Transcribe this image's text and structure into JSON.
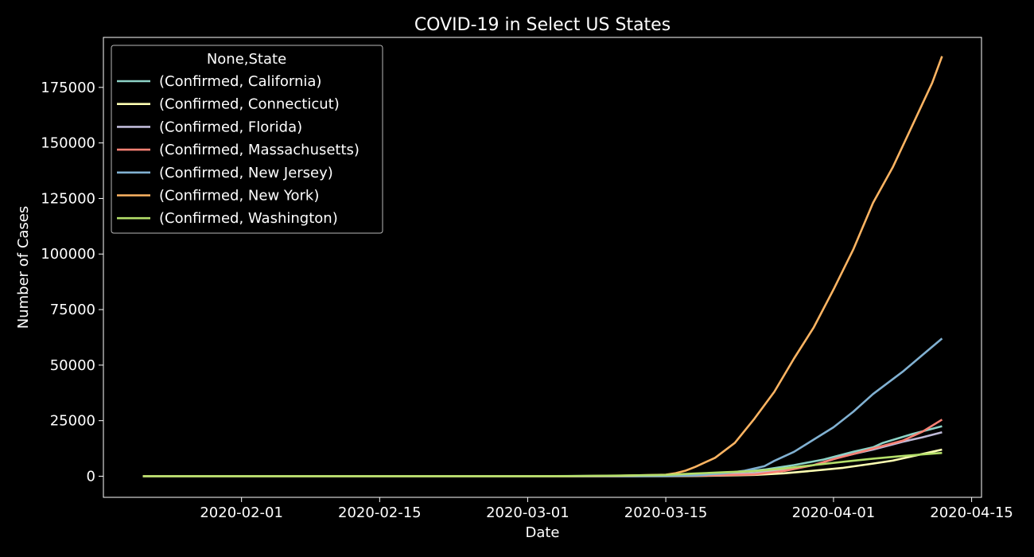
{
  "chart_data": {
    "type": "line",
    "title": "COVID-19 in Select US States",
    "xlabel": "Date",
    "ylabel": "Number of Cases",
    "legend_title": "None,State",
    "legend_position": "upper-left",
    "grid": false,
    "x_range": [
      "2020-01-18",
      "2020-04-16"
    ],
    "ylim": [
      -9500,
      197500
    ],
    "x_ticks": [
      "2020-02-01",
      "2020-02-15",
      "2020-03-01",
      "2020-03-15",
      "2020-04-01",
      "2020-04-15"
    ],
    "y_ticks": [
      0,
      25000,
      50000,
      75000,
      100000,
      125000,
      150000,
      175000
    ],
    "y_tick_labels": [
      "0",
      "25000",
      "50000",
      "75000",
      "100000",
      "125000",
      "150000",
      "175000"
    ],
    "series": [
      {
        "name": "(Confirmed, California)",
        "color": "#8dd3c7",
        "points": [
          [
            "2020-01-22",
            0
          ],
          [
            "2020-03-01",
            40
          ],
          [
            "2020-03-10",
            180
          ],
          [
            "2020-03-15",
            420
          ],
          [
            "2020-03-17",
            700
          ],
          [
            "2020-03-20",
            1200
          ],
          [
            "2020-03-23",
            2100
          ],
          [
            "2020-03-25",
            3000
          ],
          [
            "2020-03-28",
            5000
          ],
          [
            "2020-03-31",
            7500
          ],
          [
            "2020-04-03",
            11000
          ],
          [
            "2020-04-05",
            13000
          ],
          [
            "2020-04-06",
            15000
          ],
          [
            "2020-04-09",
            19000
          ],
          [
            "2020-04-12",
            22500
          ]
        ]
      },
      {
        "name": "(Confirmed, Connecticut)",
        "color": "#feffb3",
        "points": [
          [
            "2020-01-22",
            0
          ],
          [
            "2020-03-10",
            5
          ],
          [
            "2020-03-15",
            40
          ],
          [
            "2020-03-18",
            100
          ],
          [
            "2020-03-21",
            300
          ],
          [
            "2020-03-24",
            600
          ],
          [
            "2020-03-27",
            1300
          ],
          [
            "2020-03-30",
            2500
          ],
          [
            "2020-04-02",
            3800
          ],
          [
            "2020-04-05",
            5700
          ],
          [
            "2020-04-07",
            7000
          ],
          [
            "2020-04-09",
            9000
          ],
          [
            "2020-04-11",
            11000
          ],
          [
            "2020-04-12",
            12000
          ]
        ]
      },
      {
        "name": "(Confirmed, Florida)",
        "color": "#bfbbd9",
        "points": [
          [
            "2020-01-22",
            0
          ],
          [
            "2020-03-05",
            10
          ],
          [
            "2020-03-12",
            60
          ],
          [
            "2020-03-15",
            130
          ],
          [
            "2020-03-18",
            400
          ],
          [
            "2020-03-21",
            800
          ],
          [
            "2020-03-24",
            1400
          ],
          [
            "2020-03-27",
            2900
          ],
          [
            "2020-03-30",
            5000
          ],
          [
            "2020-04-02",
            9000
          ],
          [
            "2020-04-05",
            12000
          ],
          [
            "2020-04-08",
            15500
          ],
          [
            "2020-04-10",
            17500
          ],
          [
            "2020-04-12",
            19800
          ]
        ]
      },
      {
        "name": "(Confirmed, Massachusetts)",
        "color": "#fa8174",
        "points": [
          [
            "2020-01-22",
            0
          ],
          [
            "2020-03-05",
            5
          ],
          [
            "2020-03-10",
            60
          ],
          [
            "2020-03-15",
            150
          ],
          [
            "2020-03-18",
            250
          ],
          [
            "2020-03-21",
            500
          ],
          [
            "2020-03-24",
            800
          ],
          [
            "2020-03-27",
            2400
          ],
          [
            "2020-03-30",
            5000
          ],
          [
            "2020-04-01",
            7700
          ],
          [
            "2020-04-03",
            10000
          ],
          [
            "2020-04-05",
            12500
          ],
          [
            "2020-04-08",
            16000
          ],
          [
            "2020-04-10",
            20000
          ],
          [
            "2020-04-12",
            25500
          ]
        ]
      },
      {
        "name": "(Confirmed, New Jersey)",
        "color": "#81b1d2",
        "points": [
          [
            "2020-01-22",
            0
          ],
          [
            "2020-03-05",
            5
          ],
          [
            "2020-03-10",
            30
          ],
          [
            "2020-03-15",
            100
          ],
          [
            "2020-03-18",
            400
          ],
          [
            "2020-03-21",
            1300
          ],
          [
            "2020-03-23",
            2500
          ],
          [
            "2020-03-25",
            4500
          ],
          [
            "2020-03-26",
            6900
          ],
          [
            "2020-03-28",
            11000
          ],
          [
            "2020-03-30",
            16500
          ],
          [
            "2020-04-01",
            22000
          ],
          [
            "2020-04-03",
            29000
          ],
          [
            "2020-04-05",
            37000
          ],
          [
            "2020-04-08",
            47000
          ],
          [
            "2020-04-10",
            54500
          ],
          [
            "2020-04-12",
            62000
          ]
        ]
      },
      {
        "name": "(Confirmed, New York)",
        "color": "#fdb462",
        "points": [
          [
            "2020-01-22",
            0
          ],
          [
            "2020-03-01",
            0
          ],
          [
            "2020-03-05",
            20
          ],
          [
            "2020-03-10",
            200
          ],
          [
            "2020-03-15",
            700
          ],
          [
            "2020-03-16",
            1400
          ],
          [
            "2020-03-17",
            2500
          ],
          [
            "2020-03-18",
            4200
          ],
          [
            "2020-03-20",
            8300
          ],
          [
            "2020-03-22",
            15000
          ],
          [
            "2020-03-24",
            26000
          ],
          [
            "2020-03-26",
            38000
          ],
          [
            "2020-03-28",
            53000
          ],
          [
            "2020-03-30",
            67000
          ],
          [
            "2020-04-01",
            84000
          ],
          [
            "2020-04-03",
            102000
          ],
          [
            "2020-04-05",
            123000
          ],
          [
            "2020-04-07",
            139000
          ],
          [
            "2020-04-09",
            158000
          ],
          [
            "2020-04-11",
            177000
          ],
          [
            "2020-04-12",
            189000
          ]
        ]
      },
      {
        "name": "(Confirmed, Washington)",
        "color": "#b3de69",
        "points": [
          [
            "2020-01-22",
            0
          ],
          [
            "2020-03-01",
            20
          ],
          [
            "2020-03-05",
            80
          ],
          [
            "2020-03-10",
            280
          ],
          [
            "2020-03-15",
            600
          ],
          [
            "2020-03-18",
            1200
          ],
          [
            "2020-03-21",
            1800
          ],
          [
            "2020-03-24",
            2300
          ],
          [
            "2020-03-27",
            3500
          ],
          [
            "2020-03-30",
            5000
          ],
          [
            "2020-04-02",
            6500
          ],
          [
            "2020-04-05",
            7900
          ],
          [
            "2020-04-08",
            9100
          ],
          [
            "2020-04-10",
            9800
          ],
          [
            "2020-04-12",
            10500
          ]
        ]
      }
    ]
  }
}
